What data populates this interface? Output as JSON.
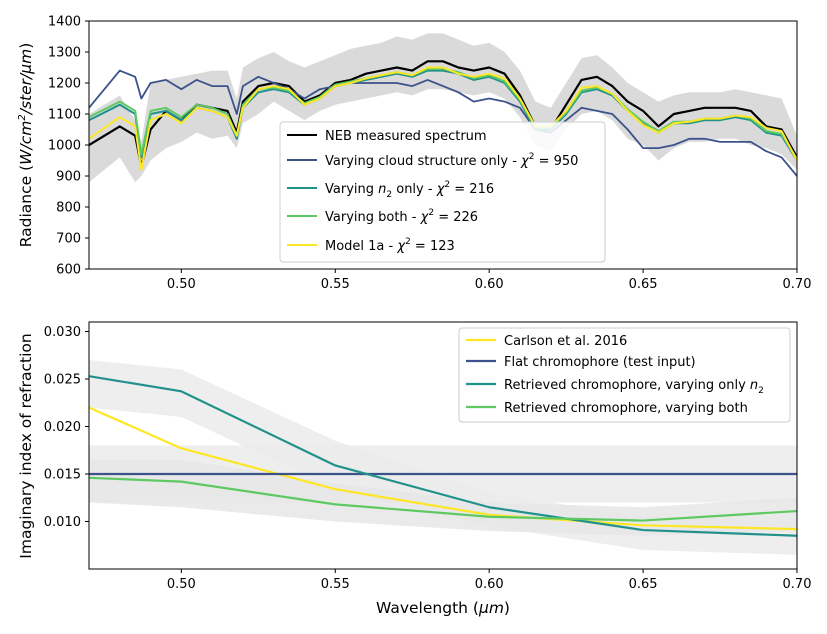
{
  "chart_data": [
    {
      "type": "line",
      "panel": "top",
      "title": "",
      "xlabel": "",
      "ylabel_parts": [
        "Radiance (",
        "W/cm",
        "2",
        "/ster/",
        "μm",
        ")"
      ],
      "xlim": [
        0.47,
        0.7
      ],
      "ylim": [
        600,
        1400
      ],
      "xticks": [
        0.5,
        0.55,
        0.6,
        0.65,
        0.7
      ],
      "xtick_labels": [
        "0.50",
        "0.55",
        "0.60",
        "0.65",
        "0.70"
      ],
      "yticks": [
        600,
        700,
        800,
        900,
        1000,
        1100,
        1200,
        1300,
        1400
      ],
      "ytick_labels": [
        "600",
        "700",
        "800",
        "900",
        "1000",
        "1100",
        "1200",
        "1300",
        "1400"
      ],
      "legend_position": "lower-center",
      "x": [
        0.47,
        0.48,
        0.485,
        0.487,
        0.49,
        0.495,
        0.5,
        0.505,
        0.51,
        0.515,
        0.518,
        0.52,
        0.525,
        0.53,
        0.535,
        0.54,
        0.545,
        0.55,
        0.555,
        0.56,
        0.565,
        0.57,
        0.575,
        0.58,
        0.585,
        0.59,
        0.595,
        0.6,
        0.605,
        0.61,
        0.615,
        0.62,
        0.625,
        0.63,
        0.635,
        0.64,
        0.645,
        0.65,
        0.655,
        0.66,
        0.665,
        0.67,
        0.675,
        0.68,
        0.685,
        0.69,
        0.695,
        0.7
      ],
      "uncertainty_band": {
        "label": "",
        "color": "#d3d3d3",
        "lower": [
          880,
          960,
          880,
          900,
          950,
          990,
          1010,
          1040,
          1020,
          1030,
          990,
          1070,
          1100,
          1140,
          1110,
          1080,
          1110,
          1130,
          1140,
          1150,
          1160,
          1170,
          1160,
          1180,
          1180,
          1170,
          1160,
          1170,
          1150,
          1090,
          1000,
          980,
          1050,
          1100,
          1110,
          1080,
          1020,
          1000,
          950,
          990,
          1010,
          1010,
          1020,
          1020,
          1000,
          990,
          970,
          920
        ],
        "upper": [
          1100,
          1160,
          1080,
          1010,
          1200,
          1210,
          1220,
          1230,
          1240,
          1240,
          1150,
          1250,
          1280,
          1300,
          1270,
          1250,
          1270,
          1290,
          1310,
          1320,
          1330,
          1350,
          1340,
          1360,
          1360,
          1340,
          1320,
          1330,
          1300,
          1240,
          1140,
          1120,
          1200,
          1280,
          1290,
          1250,
          1200,
          1170,
          1140,
          1160,
          1170,
          1170,
          1170,
          1180,
          1170,
          1160,
          1150,
          1030
        ]
      },
      "series": [
        {
          "name": "NEB measured spectrum",
          "color": "#000000",
          "width": 2.2,
          "values": [
            1000,
            1060,
            1030,
            930,
            1050,
            1110,
            1080,
            1130,
            1120,
            1110,
            1040,
            1140,
            1190,
            1200,
            1190,
            1140,
            1160,
            1200,
            1210,
            1230,
            1240,
            1250,
            1240,
            1270,
            1270,
            1250,
            1240,
            1250,
            1230,
            1160,
            1060,
            1050,
            1130,
            1210,
            1220,
            1190,
            1140,
            1110,
            1060,
            1100,
            1110,
            1120,
            1120,
            1120,
            1110,
            1060,
            1050,
            960
          ]
        },
        {
          "name": "Varying cloud structure only - χ² = 950",
          "color": "#3b528b",
          "width": 1.8,
          "values": [
            1120,
            1240,
            1220,
            1150,
            1200,
            1210,
            1180,
            1210,
            1190,
            1190,
            1100,
            1190,
            1220,
            1200,
            1180,
            1150,
            1180,
            1190,
            1200,
            1200,
            1200,
            1200,
            1190,
            1210,
            1190,
            1170,
            1140,
            1150,
            1140,
            1120,
            1050,
            1040,
            1080,
            1120,
            1110,
            1100,
            1050,
            990,
            990,
            1000,
            1020,
            1020,
            1010,
            1010,
            1010,
            980,
            960,
            900
          ]
        },
        {
          "name": "Varying n₂ only - χ² = 216",
          "color": "#21918c",
          "width": 2.0,
          "values": [
            1080,
            1130,
            1100,
            960,
            1100,
            1110,
            1080,
            1120,
            1110,
            1090,
            1020,
            1120,
            1170,
            1180,
            1170,
            1130,
            1150,
            1190,
            1200,
            1210,
            1220,
            1230,
            1220,
            1240,
            1240,
            1230,
            1210,
            1220,
            1200,
            1140,
            1050,
            1050,
            1100,
            1170,
            1180,
            1160,
            1110,
            1070,
            1040,
            1070,
            1070,
            1080,
            1080,
            1090,
            1080,
            1040,
            1030,
            950
          ]
        },
        {
          "name": "Varying both - χ² = 226",
          "color": "#5ec962",
          "width": 2.0,
          "values": [
            1090,
            1140,
            1110,
            970,
            1110,
            1120,
            1090,
            1130,
            1120,
            1100,
            1030,
            1130,
            1180,
            1185,
            1175,
            1135,
            1155,
            1195,
            1205,
            1215,
            1225,
            1235,
            1225,
            1245,
            1245,
            1235,
            1215,
            1225,
            1205,
            1145,
            1055,
            1055,
            1105,
            1175,
            1185,
            1165,
            1115,
            1075,
            1045,
            1075,
            1075,
            1085,
            1085,
            1095,
            1085,
            1045,
            1035,
            955
          ]
        },
        {
          "name": "Model 1a - χ² = 123",
          "color": "#fde725",
          "width": 2.0,
          "values": [
            1020,
            1090,
            1060,
            920,
            1080,
            1100,
            1070,
            1120,
            1110,
            1090,
            1030,
            1120,
            1180,
            1190,
            1180,
            1130,
            1150,
            1190,
            1200,
            1215,
            1225,
            1235,
            1225,
            1250,
            1250,
            1230,
            1220,
            1230,
            1215,
            1150,
            1060,
            1060,
            1110,
            1185,
            1190,
            1165,
            1110,
            1065,
            1040,
            1070,
            1075,
            1085,
            1085,
            1095,
            1090,
            1055,
            1045,
            950
          ]
        }
      ],
      "legend": [
        {
          "label": "NEB measured spectrum",
          "color": "#000000"
        },
        {
          "label_pre": "Varying cloud structure only - ",
          "label_var": "χ",
          "label_sup": "2",
          "label_post": " = 950",
          "color": "#3b528b"
        },
        {
          "label_pre": "Varying ",
          "label_var": "n",
          "label_sub": "2",
          "label_post": " only - ",
          "label_var2": "χ",
          "label_sup2": "2",
          "label_post2": " = 216",
          "color": "#21918c"
        },
        {
          "label_pre": "Varying both - ",
          "label_var": "χ",
          "label_sup": "2",
          "label_post": " = 226",
          "color": "#5ec962"
        },
        {
          "label_pre": "Model 1a - ",
          "label_var": "χ",
          "label_sup": "2",
          "label_post": " = 123",
          "color": "#fde725"
        }
      ]
    },
    {
      "type": "line",
      "panel": "bottom",
      "title": "",
      "xlabel_parts": [
        "Wavelength (",
        "μm",
        ")"
      ],
      "ylabel": "Imaginary index of refraction",
      "xlim": [
        0.47,
        0.7
      ],
      "ylim": [
        0.005,
        0.031
      ],
      "xticks": [
        0.5,
        0.55,
        0.6,
        0.65,
        0.7
      ],
      "xtick_labels": [
        "0.50",
        "0.55",
        "0.60",
        "0.65",
        "0.70"
      ],
      "yticks": [
        0.01,
        0.015,
        0.02,
        0.025,
        0.03
      ],
      "ytick_labels": [
        "0.010",
        "0.015",
        "0.020",
        "0.025",
        "0.030"
      ],
      "legend_position": "upper-right",
      "x": [
        0.47,
        0.5,
        0.55,
        0.6,
        0.65,
        0.7
      ],
      "bands": [
        {
          "label": "flat band",
          "color": "#ebebeb",
          "lower": [
            0.012,
            0.012,
            0.012,
            0.012,
            0.012,
            0.012
          ],
          "upper": [
            0.018,
            0.018,
            0.018,
            0.018,
            0.018,
            0.018
          ]
        },
        {
          "label": "n2 band",
          "color": "#ebebeb",
          "lower": [
            0.022,
            0.021,
            0.0135,
            0.0095,
            0.007,
            0.0065
          ],
          "upper": [
            0.027,
            0.026,
            0.0185,
            0.013,
            0.0105,
            0.01
          ]
        },
        {
          "label": "both band",
          "color": "#e6e6e6",
          "lower": [
            0.012,
            0.0115,
            0.01,
            0.009,
            0.0085,
            0.009
          ],
          "upper": [
            0.0165,
            0.0165,
            0.014,
            0.012,
            0.0115,
            0.0125
          ]
        }
      ],
      "series": [
        {
          "name": "Carlson et al. 2016",
          "color": "#fde725",
          "width": 2.2,
          "values": [
            0.022,
            0.0177,
            0.0134,
            0.0107,
            0.0096,
            0.0092
          ]
        },
        {
          "name": "Flat chromophore (test input)",
          "color": "#3b528b",
          "width": 2.2,
          "values": [
            0.015,
            0.015,
            0.015,
            0.015,
            0.015,
            0.015
          ]
        },
        {
          "name": "Retrieved chromophore, varying only n₂",
          "color": "#21918c",
          "width": 2.2,
          "values": [
            0.0253,
            0.0237,
            0.0159,
            0.0115,
            0.0091,
            0.0085
          ]
        },
        {
          "name": "Retrieved chromophore, varying both",
          "color": "#5ec962",
          "width": 2.2,
          "values": [
            0.0146,
            0.0142,
            0.0118,
            0.0105,
            0.0101,
            0.0111
          ]
        }
      ],
      "legend": [
        {
          "label": "Carlson et al. 2016",
          "color": "#fde725"
        },
        {
          "label": "Flat chromophore (test input)",
          "color": "#3b528b"
        },
        {
          "label_pre": "Retrieved chromophore, varying only ",
          "label_var": "n",
          "label_sub": "2",
          "color": "#21918c"
        },
        {
          "label": "Retrieved chromophore, varying both",
          "color": "#5ec962"
        }
      ]
    }
  ]
}
